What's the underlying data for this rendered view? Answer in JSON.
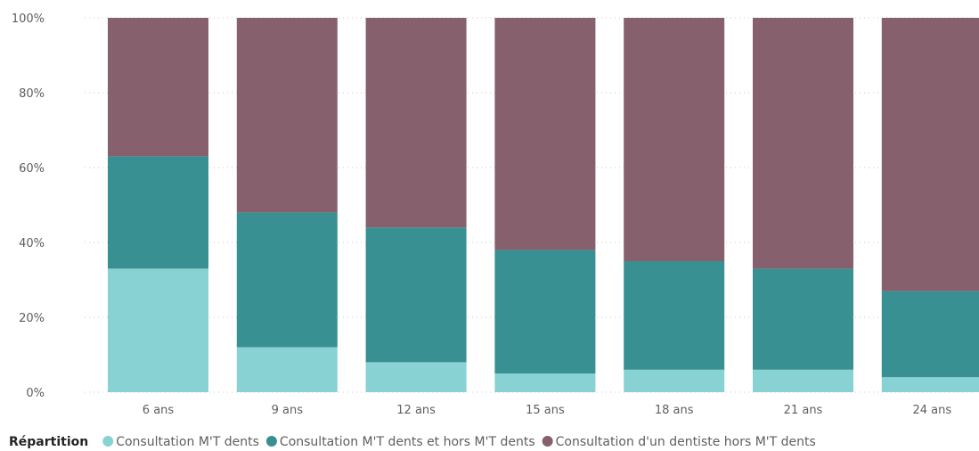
{
  "chart_data": {
    "type": "bar",
    "stacked": true,
    "percent": true,
    "categories": [
      "6 ans",
      "9 ans",
      "12 ans",
      "15 ans",
      "18 ans",
      "21 ans",
      "24 ans"
    ],
    "series": [
      {
        "name": "Consultation M'T dents",
        "color": "#89d2d3",
        "values": [
          33,
          12,
          8,
          5,
          6,
          6,
          4
        ]
      },
      {
        "name": "Consultation M'T dents et hors M'T dents",
        "color": "#389092",
        "values": [
          30,
          36,
          36,
          33,
          29,
          27,
          23
        ]
      },
      {
        "name": "Consultation d'un dentiste hors M'T dents",
        "color": "#87606e",
        "values": [
          37,
          52,
          56,
          62,
          65,
          67,
          73
        ]
      }
    ],
    "yticks": [
      "0%",
      "20%",
      "40%",
      "60%",
      "80%",
      "100%"
    ],
    "ylim": [
      0,
      100
    ],
    "grid": true,
    "legend": {
      "title": "Répartition",
      "position": "bottom-left"
    }
  }
}
